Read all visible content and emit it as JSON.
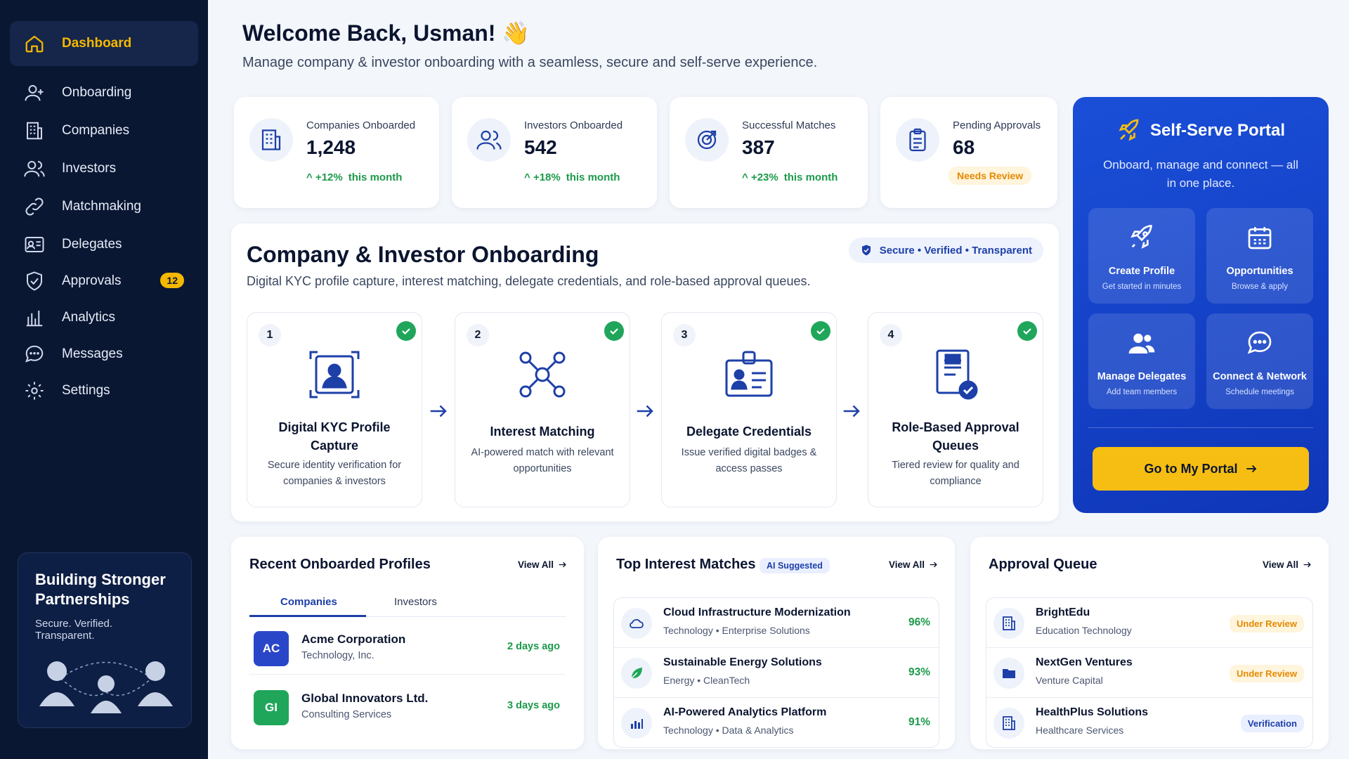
{
  "sidebar": {
    "items": [
      {
        "label": "Dashboard",
        "icon": "home-icon"
      },
      {
        "label": "Onboarding",
        "icon": "user-add-icon"
      },
      {
        "label": "Companies",
        "icon": "building-icon"
      },
      {
        "label": "Investors",
        "icon": "users-icon"
      },
      {
        "label": "Matchmaking",
        "icon": "link-icon"
      },
      {
        "label": "Delegates",
        "icon": "id-card-icon"
      },
      {
        "label": "Approvals",
        "icon": "shield-icon",
        "badge": "12"
      },
      {
        "label": "Analytics",
        "icon": "bar-chart-icon"
      },
      {
        "label": "Messages",
        "icon": "chat-icon"
      },
      {
        "label": "Settings",
        "icon": "gear-icon"
      }
    ],
    "promo": {
      "title": "Building Stronger Partnerships",
      "subtitle": "Secure. Verified. Transparent."
    }
  },
  "header": {
    "title": "Welcome Back, Usman! 👋",
    "subtitle": "Manage company & investor onboarding with a seamless, secure and self-serve experience."
  },
  "stats": [
    {
      "label": "Companies Onboarded",
      "value": "1,248",
      "trend": "+12%",
      "period": "this month",
      "icon": "building-icon"
    },
    {
      "label": "Investors Onboarded",
      "value": "542",
      "trend": "+18%",
      "period": "this month",
      "icon": "users-icon"
    },
    {
      "label": "Successful Matches",
      "value": "387",
      "trend": "+23%",
      "period": "this month",
      "icon": "target-icon"
    },
    {
      "label": "Pending Approvals",
      "value": "68",
      "status": "Needs Review",
      "icon": "clipboard-icon"
    }
  ],
  "onboarding": {
    "title": "Company & Investor Onboarding",
    "subtitle": "Digital KYC profile capture, interest matching, delegate credentials, and role-based approval queues.",
    "badge": "Secure • Verified • Transparent",
    "steps": [
      {
        "num": "1",
        "title": "Digital KYC Profile Capture",
        "desc": "Secure identity verification for companies & investors"
      },
      {
        "num": "2",
        "title": "Interest Matching",
        "desc": "AI-powered match with relevant opportunities"
      },
      {
        "num": "3",
        "title": "Delegate Credentials",
        "desc": "Issue verified digital badges & access passes"
      },
      {
        "num": "4",
        "title": "Role-Based Approval Queues",
        "desc": "Tiered review for quality and compliance"
      }
    ]
  },
  "portal": {
    "title": "Self-Serve Portal",
    "subtitle": "Onboard, manage and connect — all in one place.",
    "tiles": [
      {
        "title": "Create Profile",
        "sub": "Get started in minutes"
      },
      {
        "title": "Opportunities",
        "sub": "Browse & apply"
      },
      {
        "title": "Manage Delegates",
        "sub": "Add team members"
      },
      {
        "title": "Connect & Network",
        "sub": "Schedule meetings"
      }
    ],
    "button": "Go to My Portal"
  },
  "recent": {
    "title": "Recent Onboarded Profiles",
    "view_all": "View All",
    "tabs": [
      "Companies",
      "Investors"
    ],
    "rows": [
      {
        "initials": "AC",
        "name": "Acme Corporation",
        "sub": "Technology, Inc.",
        "time": "2 days ago",
        "color": "#2a46c8"
      },
      {
        "initials": "GI",
        "name": "Global Innovators Ltd.",
        "sub": "Consulting Services",
        "time": "3 days ago",
        "color": "#1fa65a"
      }
    ]
  },
  "matches": {
    "title": "Top Interest Matches",
    "badge": "AI Suggested",
    "view_all": "View All",
    "rows": [
      {
        "title": "Cloud Infrastructure Modernization",
        "sector": "Technology",
        "sub": "Enterprise Solutions",
        "pct": "96%",
        "icon": "cloud-icon"
      },
      {
        "title": "Sustainable Energy Solutions",
        "sector": "Energy",
        "sub": "CleanTech",
        "pct": "93%",
        "icon": "leaf-icon"
      },
      {
        "title": "AI-Powered Analytics Platform",
        "sector": "Technology",
        "sub": "Data & Analytics",
        "pct": "91%",
        "icon": "chart-icon"
      }
    ]
  },
  "queue": {
    "title": "Approval Queue",
    "view_all": "View All",
    "rows": [
      {
        "name": "BrightEdu",
        "sub": "Education Technology",
        "status": "Under Review",
        "icon": "building-icon"
      },
      {
        "name": "NextGen Ventures",
        "sub": "Venture Capital",
        "status": "Under Review",
        "icon": "folder-icon"
      },
      {
        "name": "HealthPlus Solutions",
        "sub": "Healthcare Services",
        "status": "Verification",
        "icon": "building-icon"
      }
    ]
  },
  "colors": {
    "sidebar_bg": "#0a1733",
    "accent_yellow": "#f5b800",
    "primary_blue": "#1d3fa8",
    "success_green": "#1c9a4a",
    "warning_orange": "#e48a00"
  }
}
